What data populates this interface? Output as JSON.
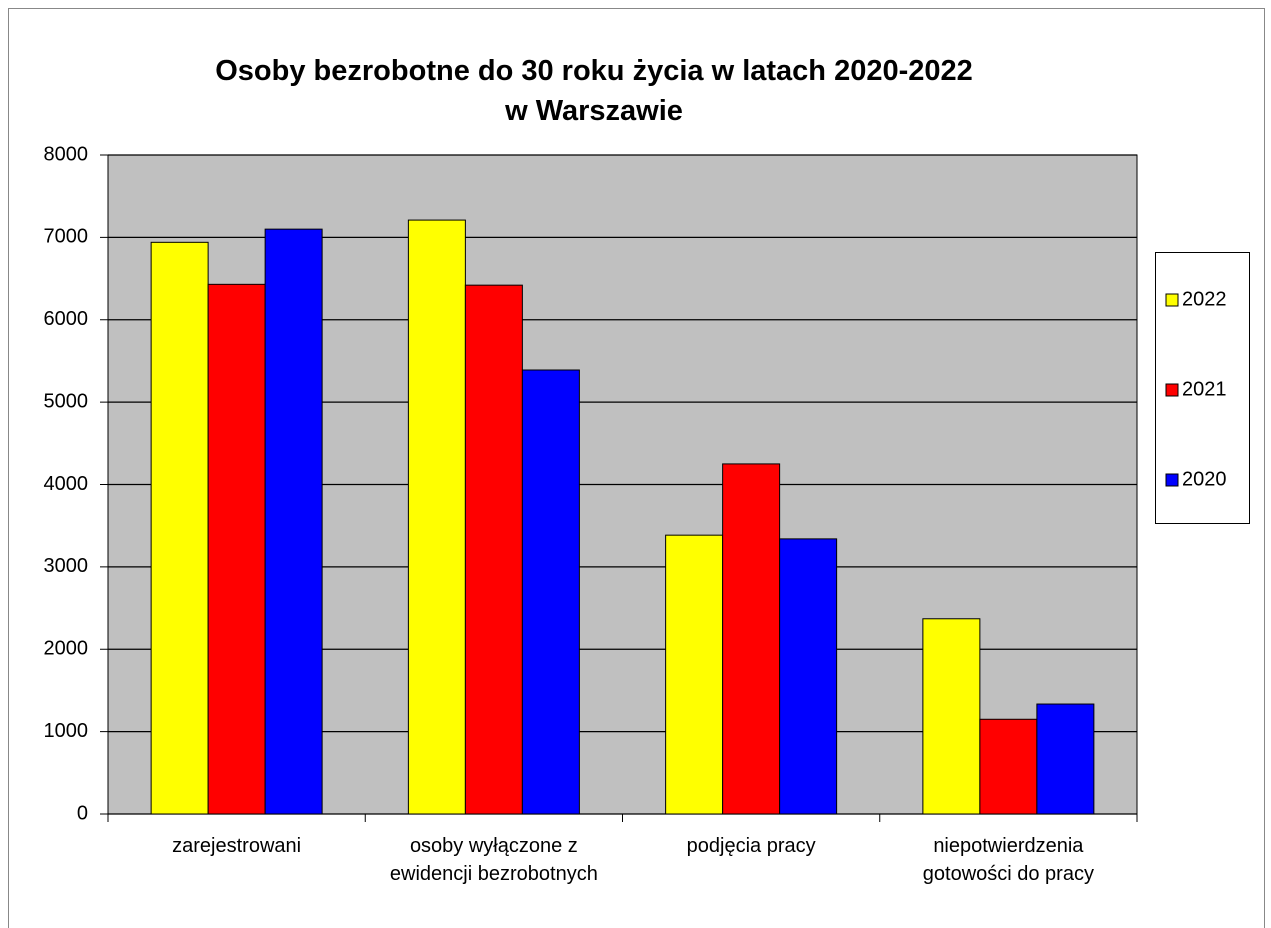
{
  "chart_data": {
    "type": "bar",
    "title": "Osoby bezrobotne do 30 roku życia w latach 2020-2022 w Warszawie",
    "categories": [
      "zarejestrowani",
      "osoby wyłączone z ewidencji bezrobotnych",
      "podjęcia pracy",
      "niepotwierdzenia gotowości do pracy"
    ],
    "series": [
      {
        "name": "2022",
        "color": "#ffff00",
        "values": [
          6940,
          7210,
          3385,
          2370
        ]
      },
      {
        "name": "2021",
        "color": "#ff0000",
        "values": [
          6430,
          6420,
          4250,
          1150
        ]
      },
      {
        "name": "2020",
        "color": "#0000ff",
        "values": [
          7100,
          5390,
          3340,
          1335
        ]
      }
    ],
    "ylim": [
      0,
      8000
    ],
    "yticks": [
      0,
      1000,
      2000,
      3000,
      4000,
      5000,
      6000,
      7000,
      8000
    ],
    "grid": true,
    "legend": "right"
  }
}
